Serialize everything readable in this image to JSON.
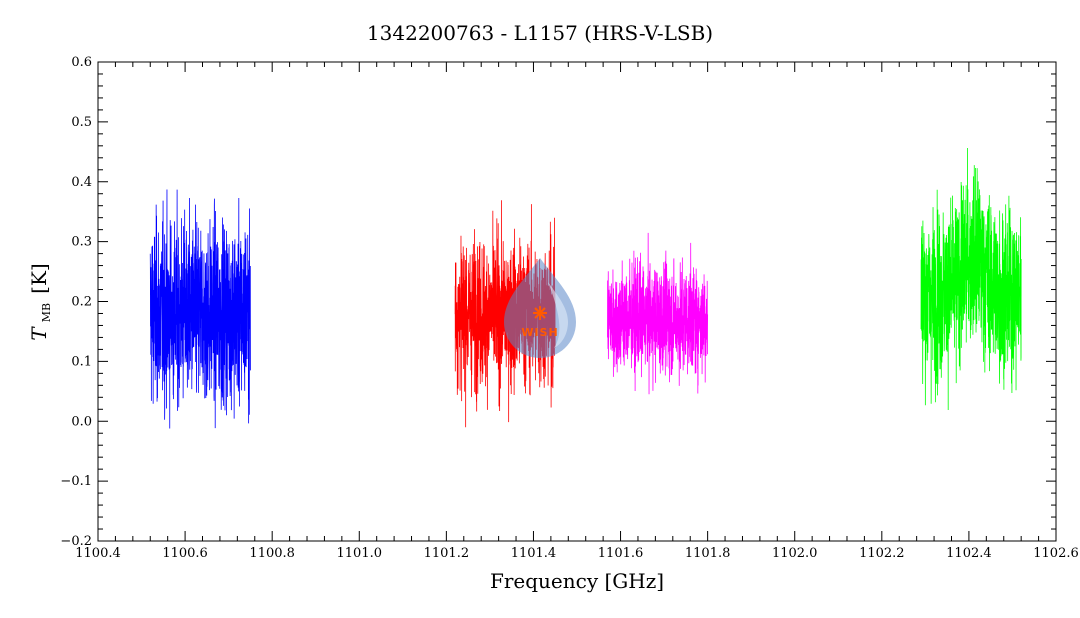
{
  "chart_data": {
    "type": "line",
    "title": "1342200763 - L1157 (HRS-V-LSB)",
    "xlabel": "Frequency [GHz]",
    "ylabel_main": "T",
    "ylabel_sub": "MB",
    "ylabel_unit": "[K]",
    "xlim": [
      1100.4,
      1102.6
    ],
    "ylim": [
      -0.2,
      0.6
    ],
    "x_ticks": [
      1100.4,
      1100.6,
      1100.8,
      1101.0,
      1101.2,
      1101.4,
      1101.6,
      1101.8,
      1102.0,
      1102.2,
      1102.4,
      1102.6
    ],
    "x_tick_labels": [
      "1100.4",
      "1100.6",
      "1100.8",
      "1101.0",
      "1101.2",
      "1101.4",
      "1101.6",
      "1101.8",
      "1102.0",
      "1102.2",
      "1102.4",
      "1102.6"
    ],
    "y_ticks": [
      -0.2,
      -0.1,
      0.0,
      0.1,
      0.2,
      0.3,
      0.4,
      0.5,
      0.6
    ],
    "y_tick_labels": [
      "−0.2",
      "−0.1",
      "0.0",
      "0.1",
      "0.2",
      "0.3",
      "0.4",
      "0.5",
      "0.6"
    ],
    "grid": false,
    "series": [
      {
        "color": "#0000ff",
        "x_start": 1100.52,
        "x_end": 1100.75,
        "mean": 0.18,
        "noise": 0.075,
        "min": -0.1,
        "max": 0.45
      },
      {
        "color": "#ff0000",
        "x_start": 1101.22,
        "x_end": 1101.45,
        "mean": 0.18,
        "noise": 0.06,
        "min": -0.11,
        "max": 0.395
      },
      {
        "color": "#ff00ff",
        "x_start": 1101.57,
        "x_end": 1101.8,
        "mean": 0.17,
        "noise": 0.045,
        "min": 0.0,
        "max": 0.32
      },
      {
        "color": "#00ff00",
        "x_start": 1102.29,
        "x_end": 1102.52,
        "mean": 0.21,
        "noise": 0.07,
        "min": -0.02,
        "max": 0.49
      }
    ]
  },
  "watermark": {
    "text": "WISH",
    "fill": "#5a86c8",
    "accent": "#ff5a00"
  }
}
